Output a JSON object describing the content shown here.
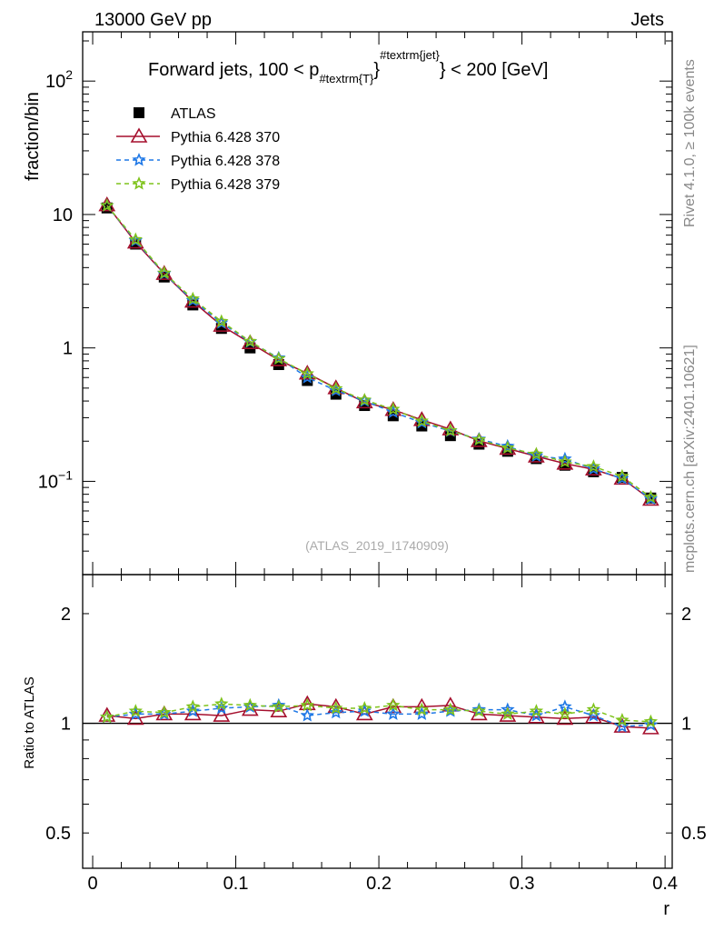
{
  "header": {
    "left": "13000 GeV pp",
    "right": "Jets"
  },
  "side_labels": {
    "rivet": "Rivet 4.1.0, ≥ 100k events",
    "mcplots": "mcplots.cern.ch [arXiv:2401.10621]"
  },
  "watermark": "(ATLAS_2019_I1740909)",
  "colors": {
    "atlas": "#000000",
    "p370": "#a50f2d",
    "p378": "#1f78e6",
    "p379": "#7fc31c"
  },
  "chart_data": [
    {
      "type": "line",
      "title_parts": {
        "prefix": "Forward jets, 100 < p",
        "sub": "#textrm{T}",
        "sup": "#textrm{jet}",
        "suffix": "} < 200 [GeV]"
      },
      "ylabel": "fraction/bin",
      "yscale": "log",
      "ylim": [
        0.02,
        234
      ],
      "xlim": [
        -0.007,
        0.405
      ],
      "yticks": [
        {
          "v": 100,
          "base": "10",
          "exp": "2"
        },
        {
          "v": 10,
          "base": "10",
          "exp": ""
        },
        {
          "v": 1,
          "base": "1",
          "exp": ""
        },
        {
          "v": 0.1,
          "base": "10",
          "exp": "−1"
        }
      ],
      "x": [
        0.01,
        0.03,
        0.05,
        0.07,
        0.09,
        0.11,
        0.13,
        0.15,
        0.17,
        0.19,
        0.21,
        0.23,
        0.25,
        0.27,
        0.29,
        0.31,
        0.33,
        0.35,
        0.37,
        0.39
      ],
      "legend": {
        "placement": "top-left"
      },
      "series": [
        {
          "name": "ATLAS",
          "key": "atlas",
          "marker": "square",
          "values": [
            11.2,
            6.0,
            3.4,
            2.1,
            1.4,
            1.0,
            0.75,
            0.57,
            0.45,
            0.37,
            0.31,
            0.26,
            0.22,
            0.19,
            0.168,
            0.148,
            0.132,
            0.118,
            0.107,
            0.075
          ]
        },
        {
          "name": "Pythia 6.428 370",
          "key": "p370",
          "marker": "triangle",
          "values": [
            11.76,
            6.18,
            3.6,
            2.23,
            1.47,
            1.09,
            0.81,
            0.644,
            0.5,
            0.392,
            0.344,
            0.289,
            0.246,
            0.201,
            0.176,
            0.154,
            0.136,
            0.123,
            0.105,
            0.073
          ]
        },
        {
          "name": "Pythia 6.428 378",
          "key": "p378",
          "marker": "star",
          "values": [
            11.65,
            6.36,
            3.6,
            2.27,
            1.54,
            1.11,
            0.84,
            0.6,
            0.48,
            0.4,
            0.33,
            0.276,
            0.238,
            0.207,
            0.183,
            0.155,
            0.147,
            0.124,
            0.105,
            0.074
          ]
        },
        {
          "name": "Pythia 6.428 379",
          "key": "p379",
          "marker": "star",
          "values": [
            11.65,
            6.48,
            3.64,
            2.33,
            1.58,
            1.12,
            0.83,
            0.64,
            0.495,
            0.407,
            0.347,
            0.283,
            0.24,
            0.205,
            0.178,
            0.16,
            0.14,
            0.129,
            0.109,
            0.076
          ]
        }
      ]
    },
    {
      "type": "line",
      "ylabel": "Ratio to ATLAS",
      "xlabel": "r",
      "yscale": "log",
      "ylim": [
        0.4,
        2.56
      ],
      "xlim": [
        -0.007,
        0.405
      ],
      "yticks": [
        {
          "v": 2,
          "label": "2"
        },
        {
          "v": 1,
          "label": "1"
        },
        {
          "v": 0.5,
          "label": "0.5"
        }
      ],
      "xticks": [
        {
          "v": 0,
          "label": "0"
        },
        {
          "v": 0.1,
          "label": "0.1"
        },
        {
          "v": 0.2,
          "label": "0.2"
        },
        {
          "v": 0.3,
          "label": "0.3"
        },
        {
          "v": 0.4,
          "label": "0.4"
        }
      ],
      "x": [
        0.01,
        0.03,
        0.05,
        0.07,
        0.09,
        0.11,
        0.13,
        0.15,
        0.17,
        0.19,
        0.21,
        0.23,
        0.25,
        0.27,
        0.29,
        0.31,
        0.33,
        0.35,
        0.37,
        0.39
      ],
      "series": [
        {
          "name": "Pythia 6.428 370",
          "key": "p370",
          "marker": "triangle",
          "values": [
            1.05,
            1.03,
            1.06,
            1.06,
            1.05,
            1.09,
            1.08,
            1.13,
            1.11,
            1.06,
            1.11,
            1.11,
            1.12,
            1.06,
            1.05,
            1.04,
            1.03,
            1.04,
            0.98,
            0.97
          ]
        },
        {
          "name": "Pythia 6.428 378",
          "key": "p378",
          "marker": "star",
          "values": [
            1.04,
            1.06,
            1.06,
            1.08,
            1.1,
            1.11,
            1.12,
            1.05,
            1.07,
            1.08,
            1.06,
            1.06,
            1.08,
            1.09,
            1.09,
            1.05,
            1.11,
            1.05,
            0.98,
            0.99
          ]
        },
        {
          "name": "Pythia 6.428 379",
          "key": "p379",
          "marker": "star",
          "values": [
            1.04,
            1.08,
            1.07,
            1.11,
            1.13,
            1.12,
            1.11,
            1.12,
            1.1,
            1.1,
            1.12,
            1.09,
            1.09,
            1.08,
            1.06,
            1.08,
            1.06,
            1.09,
            1.02,
            1.01
          ]
        }
      ]
    }
  ]
}
